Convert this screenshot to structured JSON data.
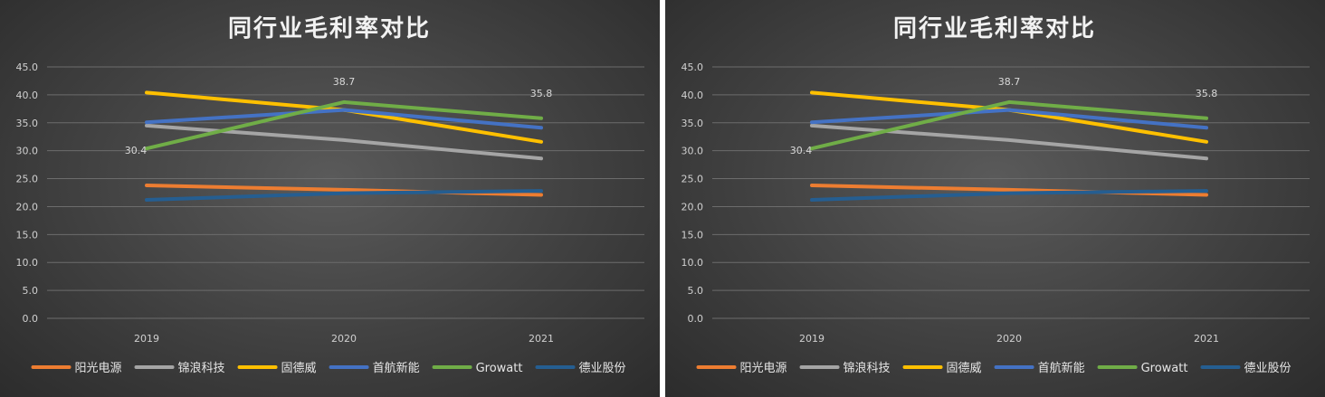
{
  "chart_data": {
    "type": "line",
    "title": "同行业毛利率对比",
    "categories": [
      "2019",
      "2020",
      "2021"
    ],
    "ylim": [
      0,
      45
    ],
    "yticks": [
      "0.0",
      "5.0",
      "10.0",
      "15.0",
      "20.0",
      "25.0",
      "30.0",
      "35.0",
      "40.0",
      "45.0"
    ],
    "grid": true,
    "legend": "bottom",
    "series": [
      {
        "name": "阳光电源",
        "color": "#ED7D31",
        "values": [
          23.8,
          23.0,
          22.1
        ]
      },
      {
        "name": "锦浪科技",
        "color": "#A5A5A5",
        "values": [
          34.5,
          31.9,
          28.6
        ]
      },
      {
        "name": "固德威",
        "color": "#FFC000",
        "values": [
          40.4,
          37.3,
          31.6
        ]
      },
      {
        "name": "首航新能",
        "color": "#4472C4",
        "values": [
          35.1,
          37.3,
          34.1
        ]
      },
      {
        "name": "Growatt",
        "color": "#70AD47",
        "values": [
          30.4,
          38.7,
          35.8
        ]
      },
      {
        "name": "德业股份",
        "color": "#255E91",
        "values": [
          21.2,
          22.4,
          22.8
        ]
      }
    ],
    "data_labels": [
      {
        "series": "Growatt",
        "index": 0,
        "text": "30.4"
      },
      {
        "series": "Growatt",
        "index": 1,
        "text": "38.7"
      },
      {
        "series": "Growatt",
        "index": 2,
        "text": "35.8"
      }
    ]
  }
}
